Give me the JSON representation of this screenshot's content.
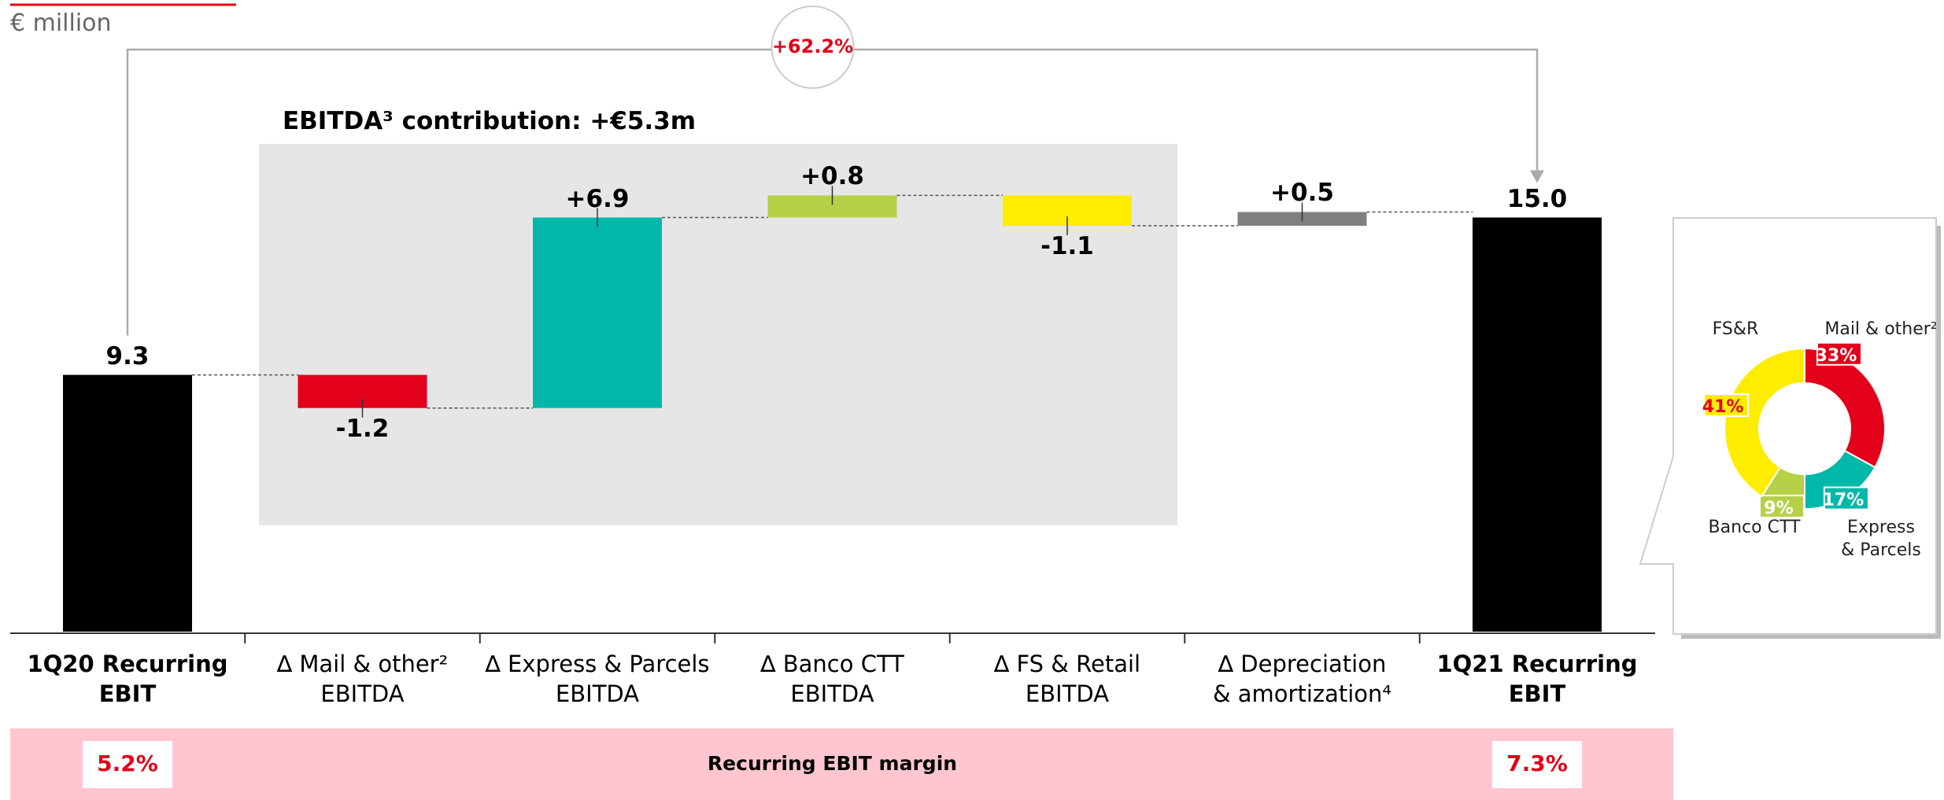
{
  "chart_data": {
    "type": "waterfall",
    "subtitle": "€ million",
    "annotation": "+62.2%",
    "group_label": "EBITDA³ contribution: +€5.3m",
    "categories": [
      "1Q20 Recurring EBIT",
      "∆ Mail & other²\nEBITDA",
      "∆ Express & Parcels\nEBITDA",
      "∆ Banco CTT\nEBITDA",
      "∆ FS & Retail\nEBITDA",
      "∆ Depreciation\n& amortization⁴",
      "1Q21 Recurring EBIT"
    ],
    "values": [
      9.3,
      -1.2,
      6.9,
      0.8,
      -1.1,
      0.5,
      15.0
    ],
    "value_labels": [
      "9.3",
      "-1.2",
      "+6.9",
      "+0.8",
      "-1.1",
      "+0.5",
      "15.0"
    ],
    "colors": [
      "#000000",
      "#e2001a",
      "#00b8a9",
      "#b5d147",
      "#ffed00",
      "#808080",
      "#000000"
    ],
    "margin": {
      "label": "Recurring EBIT margin",
      "values": [
        5.2,
        7.3
      ],
      "value_labels": [
        "5.2%",
        "7.3%"
      ]
    },
    "donut": {
      "type": "pie",
      "categories": [
        "Mail & other²",
        "Express\n& Parcels",
        "Banco CTT",
        "FS&R"
      ],
      "values": [
        33,
        17,
        9,
        41
      ],
      "colors": [
        "#e2001a",
        "#00b8a9",
        "#b5d147",
        "#ffed00"
      ]
    }
  }
}
